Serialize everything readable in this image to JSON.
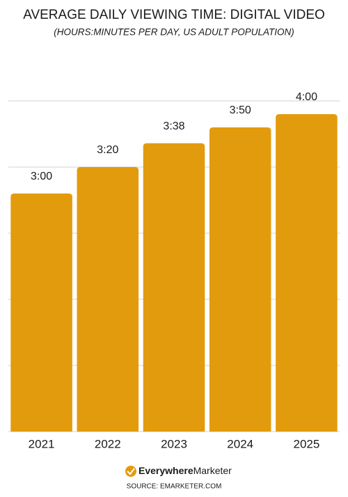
{
  "chart_data": {
    "type": "bar",
    "title": "AVERAGE DAILY VIEWING TIME: DIGITAL VIDEO",
    "subtitle": "(HOURS:MINUTES PER DAY, US ADULT POPULATION)",
    "categories": [
      "2021",
      "2022",
      "2023",
      "2024",
      "2025"
    ],
    "values": [
      180,
      200,
      218,
      230,
      240
    ],
    "value_labels": [
      "3:00",
      "3:20",
      "3:38",
      "3:50",
      "4:00"
    ],
    "color": "#e39b0e",
    "ylim": [
      0,
      250
    ],
    "yticks": [
      0,
      50,
      100,
      150,
      200,
      250
    ],
    "grid": true,
    "brand": [
      "Everywhere",
      "Marketer"
    ],
    "source": "SOURCE: EMARKETER.COM"
  }
}
